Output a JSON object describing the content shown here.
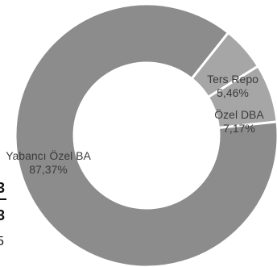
{
  "chart_data": {
    "type": "pie",
    "donut": true,
    "title": "",
    "series": [
      {
        "slices": [
          {
            "label": "Ters  Repo",
            "value": 5.46,
            "value_label": "5,46%",
            "color": "#a6a6a6"
          },
          {
            "label": "Özel DBA",
            "value": 7.17,
            "value_label": "7,17%",
            "color": "#a6a6a6"
          },
          {
            "label": "Yabancı Özel BA",
            "value": 87.37,
            "value_label": "87,37%",
            "color": "#8c8c8c"
          }
        ]
      }
    ]
  },
  "fragments": [
    "3",
    "3",
    "5"
  ]
}
